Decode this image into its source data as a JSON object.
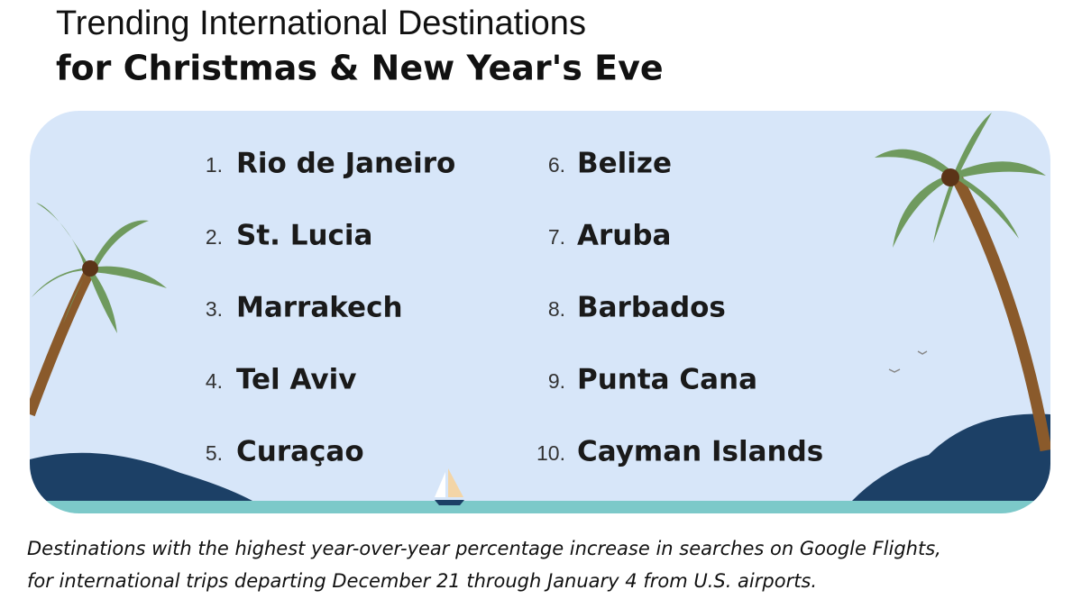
{
  "header": {
    "title_line1": "Trending International Destinations",
    "title_line2": "for Christmas & New Year's Eve"
  },
  "list": [
    {
      "rank": "1.",
      "name": "Rio de Janeiro"
    },
    {
      "rank": "2.",
      "name": "St. Lucia"
    },
    {
      "rank": "3.",
      "name": "Marrakech"
    },
    {
      "rank": "4.",
      "name": "Tel Aviv"
    },
    {
      "rank": "5.",
      "name": "Curaçao"
    },
    {
      "rank": "6.",
      "name": "Belize"
    },
    {
      "rank": "7.",
      "name": "Aruba"
    },
    {
      "rank": "8.",
      "name": "Barbados"
    },
    {
      "rank": "9.",
      "name": "Punta Cana"
    },
    {
      "rank": "10.",
      "name": "Cayman Islands"
    }
  ],
  "caption": [
    "Destinations with the highest year-over-year percentage increase in searches on Google Flights,",
    "for international trips departing December 21 through January 4 from U.S. airports."
  ]
}
